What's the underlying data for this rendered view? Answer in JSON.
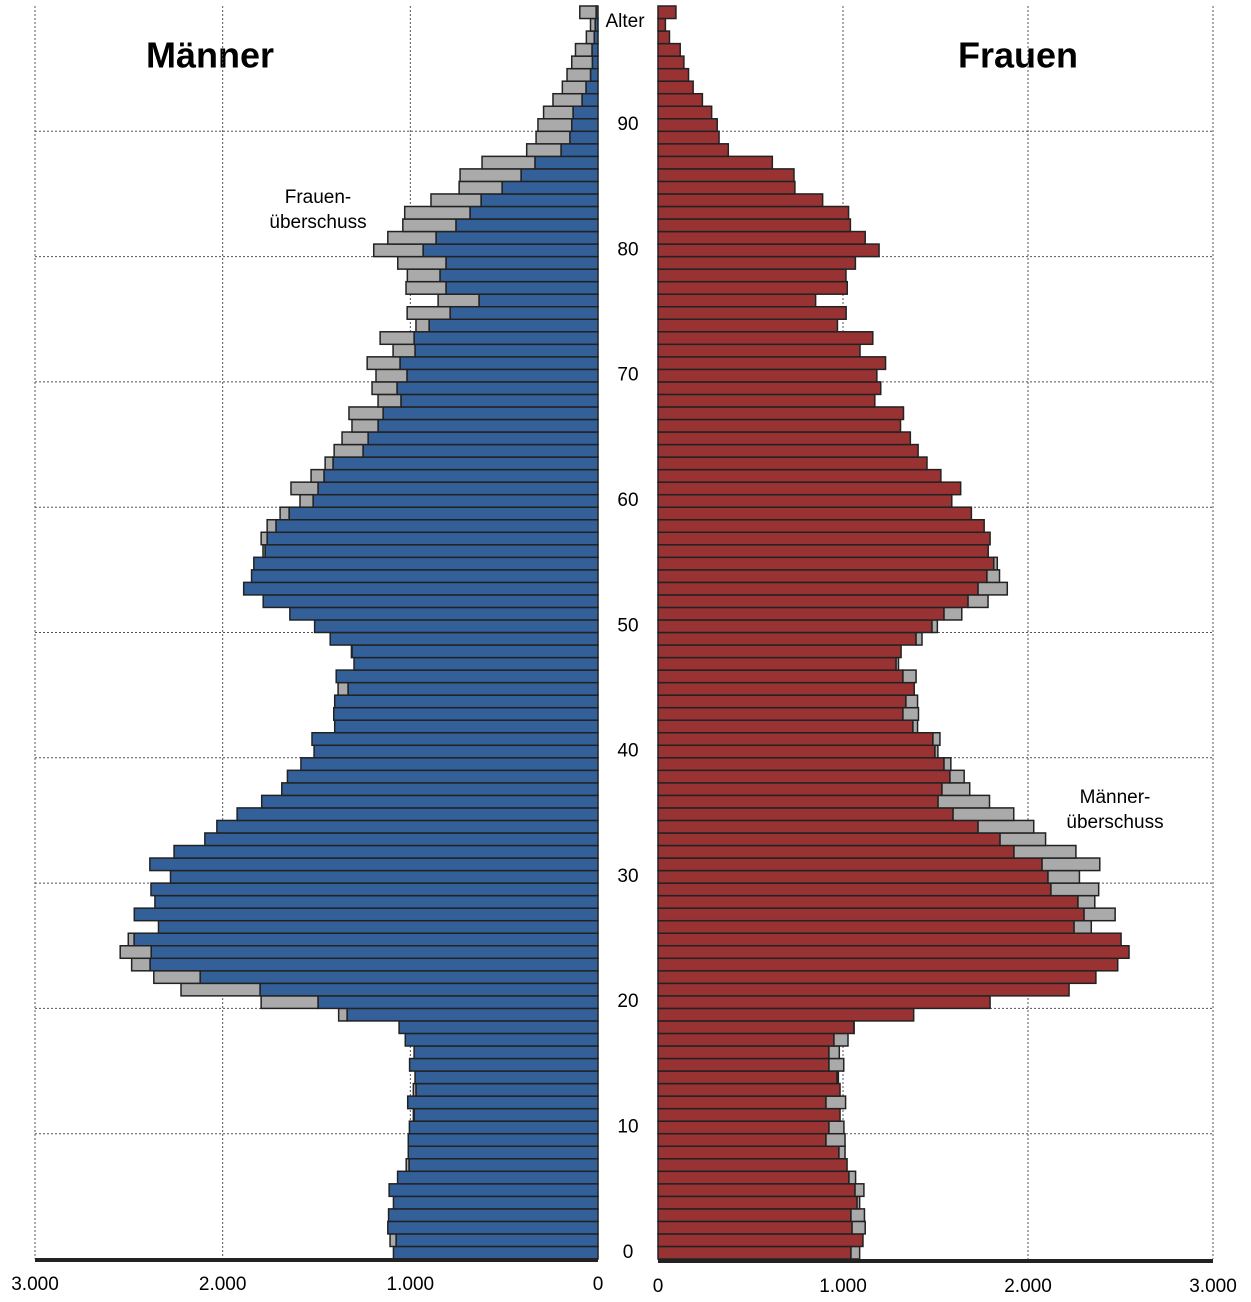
{
  "chart_data": {
    "type": "population_pyramid",
    "y": [
      0,
      1,
      2,
      3,
      4,
      5,
      6,
      7,
      8,
      9,
      10,
      11,
      12,
      13,
      14,
      15,
      16,
      17,
      18,
      19,
      20,
      21,
      22,
      23,
      24,
      25,
      26,
      27,
      28,
      29,
      30,
      31,
      32,
      33,
      34,
      35,
      36,
      37,
      38,
      39,
      40,
      41,
      42,
      43,
      44,
      45,
      46,
      47,
      48,
      49,
      50,
      51,
      52,
      53,
      54,
      55,
      56,
      57,
      58,
      59,
      60,
      61,
      62,
      63,
      64,
      65,
      66,
      67,
      68,
      69,
      70,
      71,
      72,
      73,
      74,
      75,
      76,
      77,
      78,
      79,
      80,
      81,
      82,
      83,
      84,
      85,
      86,
      87,
      88,
      89,
      90,
      91,
      92,
      93,
      94,
      95,
      96,
      97,
      98,
      99
    ],
    "series": [
      {
        "name": "Männer",
        "color": "#34609a",
        "values": [
          1090,
          1076,
          1120,
          1116,
          1090,
          1113,
          1068,
          1007,
          1011,
          1011,
          1005,
          980,
          1014,
          970,
          975,
          1004,
          980,
          1027,
          1060,
          1337,
          1492,
          1801,
          2120,
          2387,
          2381,
          2472,
          2342,
          2471,
          2361,
          2382,
          2278,
          2388,
          2259,
          2095,
          2031,
          1923,
          1792,
          1685,
          1655,
          1583,
          1513,
          1524,
          1403,
          1408,
          1403,
          1332,
          1395,
          1300,
          1311,
          1427,
          1510,
          1642,
          1784,
          1888,
          1846,
          1834,
          1774,
          1763,
          1716,
          1646,
          1518,
          1492,
          1460,
          1412,
          1252,
          1225,
          1172,
          1145,
          1050,
          1071,
          1018,
          1055,
          975,
          980,
          900,
          788,
          634,
          810,
          842,
          810,
          932,
          863,
          757,
          682,
          623,
          511,
          410,
          336,
          197,
          150,
          140,
          133,
          85,
          64,
          40,
          30,
          32,
          20,
          15,
          10
        ]
      },
      {
        "name": "Frauen",
        "color": "#993333",
        "values": [
          1043,
          1108,
          1049,
          1043,
          1076,
          1065,
          1032,
          1022,
          978,
          908,
          924,
          984,
          908,
          984,
          968,
          924,
          924,
          951,
          1059,
          1382,
          1795,
          2222,
          2367,
          2485,
          2546,
          2503,
          2249,
          2303,
          2270,
          2124,
          2108,
          2076,
          1924,
          1849,
          1730,
          1595,
          1514,
          1535,
          1578,
          1546,
          1497,
          1486,
          1378,
          1324,
          1340,
          1385,
          1324,
          1287,
          1314,
          1395,
          1481,
          1546,
          1676,
          1730,
          1778,
          1815,
          1785,
          1795,
          1763,
          1694,
          1588,
          1636,
          1529,
          1454,
          1406,
          1364,
          1311,
          1327,
          1172,
          1204,
          1183,
          1230,
          1092,
          1161,
          970,
          1017,
          852,
          1023,
          1016,
          1067,
          1195,
          1120,
          1040,
          1030,
          890,
          740,
          735,
          618,
          380,
          330,
          320,
          290,
          240,
          190,
          165,
          140,
          120,
          62,
          40,
          97
        ]
      }
    ],
    "surplus_color": "#aaaaaa",
    "y_label": "Alter",
    "ylim": [
      -0.5,
      99.5
    ],
    "yticks": [
      0,
      10,
      20,
      30,
      40,
      50,
      60,
      70,
      80,
      90
    ],
    "xlim": [
      0,
      3000
    ],
    "xticks": [
      0,
      {
        "value": 1000,
        "label": "1.000"
      },
      {
        "value": 2000,
        "label": "2.000"
      },
      {
        "value": 3000,
        "label": "3.000"
      }
    ],
    "grid": true,
    "annotations": [
      [
        "Frauen-",
        "überschuss"
      ],
      [
        "Männer-",
        "überschuss"
      ]
    ]
  }
}
